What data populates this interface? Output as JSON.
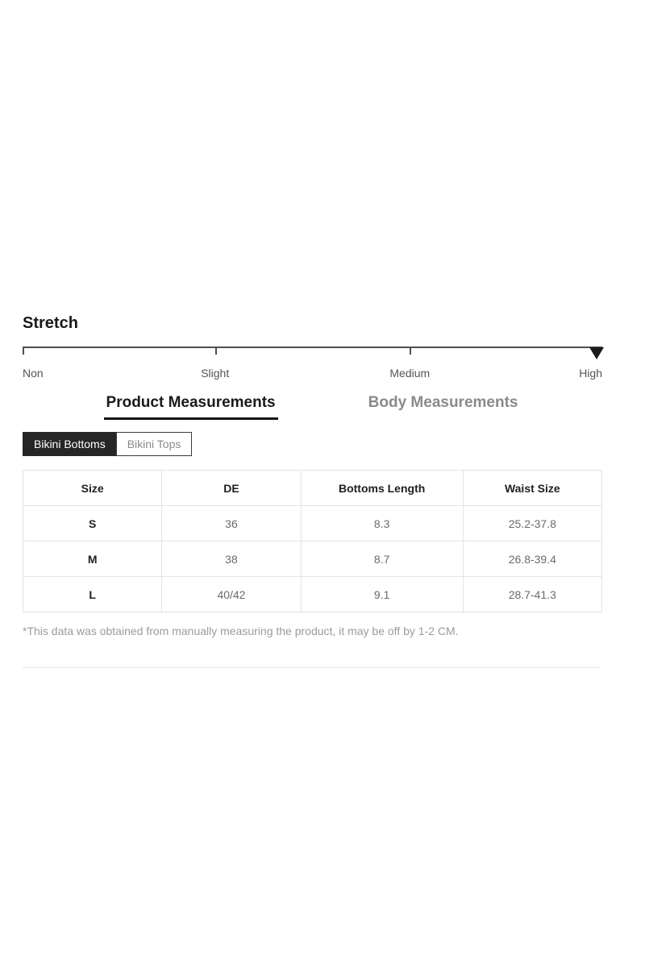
{
  "stretch": {
    "title": "Stretch",
    "levels": [
      "Non",
      "Slight",
      "Medium",
      "High"
    ],
    "selected_level": "High",
    "marker_icon": "triangle-down",
    "track_color": "#4f4f4f",
    "marker_color": "#1b1b1b"
  },
  "measure_tabs": {
    "product_label": "Product Measurements",
    "body_label": "Body Measurements",
    "active_tab": "Product Measurements",
    "active_color": "#1a1a1a",
    "inactive_color": "#8a8a8a"
  },
  "category_tabs": {
    "items": [
      {
        "label": "Bikini Bottoms",
        "active": true
      },
      {
        "label": "Bikini Tops",
        "active": false
      }
    ],
    "active_bg": "#262626",
    "active_fg": "#ffffff"
  },
  "size_table": {
    "columns": [
      "Size",
      "DE",
      "Bottoms Length",
      "Waist Size"
    ],
    "rows": [
      [
        "S",
        "36",
        "8.3",
        "25.2-37.8"
      ],
      [
        "M",
        "38",
        "8.7",
        "26.8-39.4"
      ],
      [
        "L",
        "40/42",
        "9.1",
        "28.7-41.3"
      ]
    ]
  },
  "footnote": {
    "text": "*This data was obtained from manually measuring the product, it may be off by 1-2 CM."
  }
}
